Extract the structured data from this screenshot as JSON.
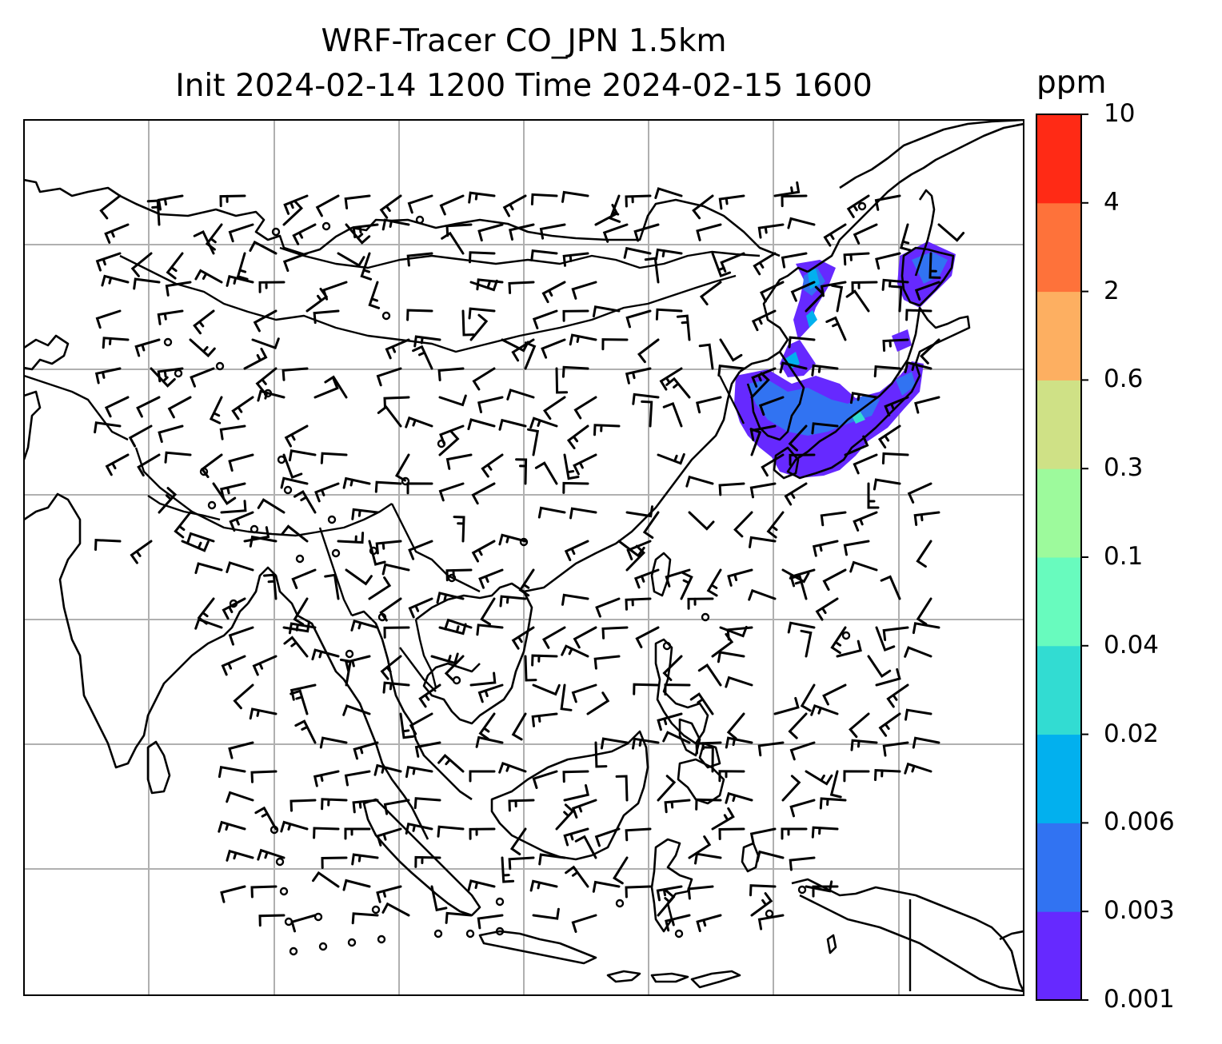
{
  "title": {
    "line1": "WRF-Tracer CO_JPN 1.5km",
    "line2": "Init 2024-02-14 1200 Time 2024-02-15 1600"
  },
  "colorbar": {
    "unit": "ppm",
    "levels": [
      "0.001",
      "0.003",
      "0.006",
      "0.02",
      "0.04",
      "0.1",
      "0.3",
      "0.6",
      "2",
      "4",
      "10"
    ],
    "colors": [
      "#6629ff",
      "#3173f2",
      "#02b0ee",
      "#32dcd2",
      "#68fbbe",
      "#9dfa9c",
      "#cfe186",
      "#fdaf61",
      "#fe723a",
      "#ff2a15"
    ]
  },
  "map": {
    "region": "East Asia, South-East Asia and the western Pacific",
    "gridlines": true,
    "features": [
      "coastlines",
      "country borders",
      "wind barbs",
      "CO tracer concentration (ppm)"
    ],
    "plume_location": "Japan and the Korean peninsula / Sea of Japan",
    "plume_color": "#6629ff"
  }
}
